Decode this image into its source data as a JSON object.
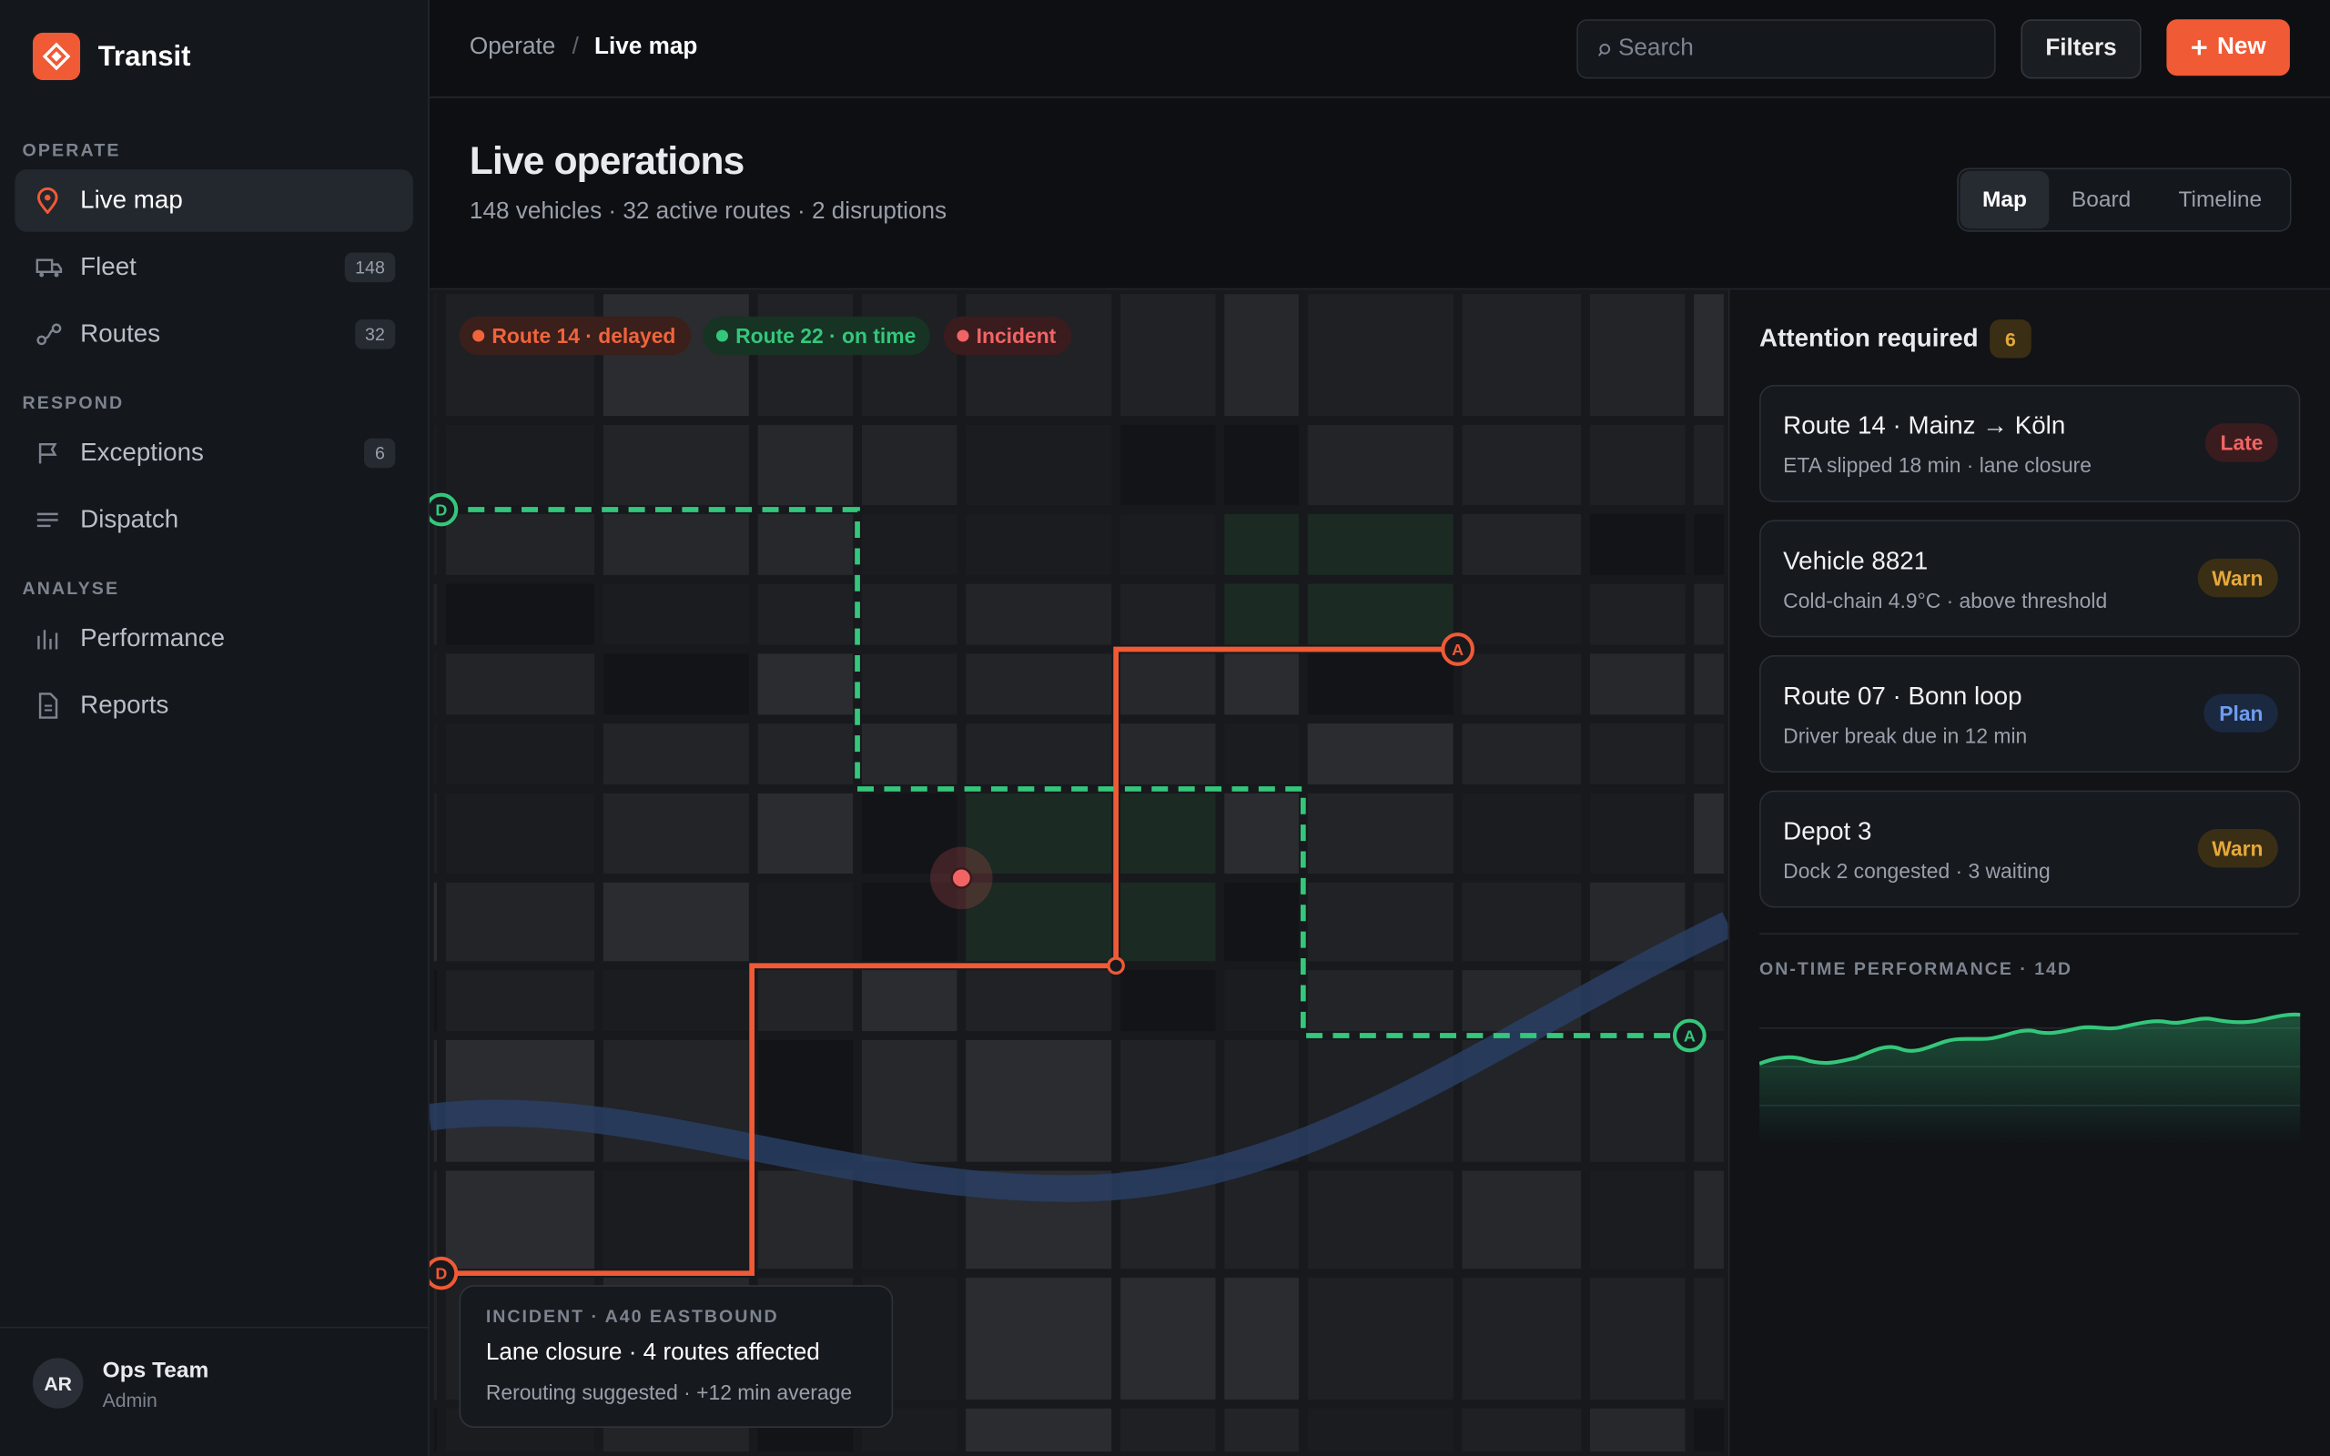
{
  "app": {
    "name": "Transit"
  },
  "sidebar": {
    "sections": [
      {
        "title": "OPERATE",
        "items": [
          {
            "label": "Live map"
          },
          {
            "label": "Fleet",
            "count": 148
          },
          {
            "label": "Routes",
            "count": 32
          }
        ]
      },
      {
        "title": "RESPOND",
        "items": [
          {
            "label": "Exceptions",
            "count": 6
          },
          {
            "label": "Dispatch"
          }
        ]
      },
      {
        "title": "ANALYSE",
        "items": [
          {
            "label": "Performance"
          },
          {
            "label": "Reports"
          }
        ]
      }
    ],
    "user": {
      "initials": "AR",
      "name": "Ops Team",
      "role": "Admin"
    }
  },
  "topbar": {
    "breadcrumb": [
      "Operate",
      "Live map"
    ],
    "search_placeholder": "Search",
    "filters": "Filters",
    "new": "New"
  },
  "header": {
    "title": "Live operations",
    "summary": "148 vehicles · 32 active routes · 2 disruptions",
    "views": [
      "Map",
      "Board",
      "Timeline"
    ]
  },
  "map": {
    "legend": [
      "Route 14 · delayed",
      "Route 22 · on time",
      "Incident"
    ],
    "markers": [
      "D",
      "A",
      "D",
      "A"
    ],
    "incident": {
      "kicker": "INCIDENT · A40 EASTBOUND",
      "title": "Lane closure · 4 routes affected",
      "detail": "Rerouting suggested · +12 min average"
    }
  },
  "attention": {
    "title": "Attention required",
    "count": 6,
    "items": [
      {
        "title": "Route 14 · Mainz → Köln",
        "detail": "ETA slipped 18 min · lane closure",
        "status": "Late"
      },
      {
        "title": "Vehicle 8821",
        "detail": "Cold-chain 4.9°C · above threshold",
        "status": "Warn"
      },
      {
        "title": "Route 07 · Bonn loop",
        "detail": "Driver break due in 12 min",
        "status": "Plan"
      },
      {
        "title": "Depot 3",
        "detail": "Dock 2 congested · 3 waiting",
        "status": "Warn"
      }
    ]
  },
  "performance": {
    "title": "ON-TIME PERFORMANCE · 14D"
  }
}
